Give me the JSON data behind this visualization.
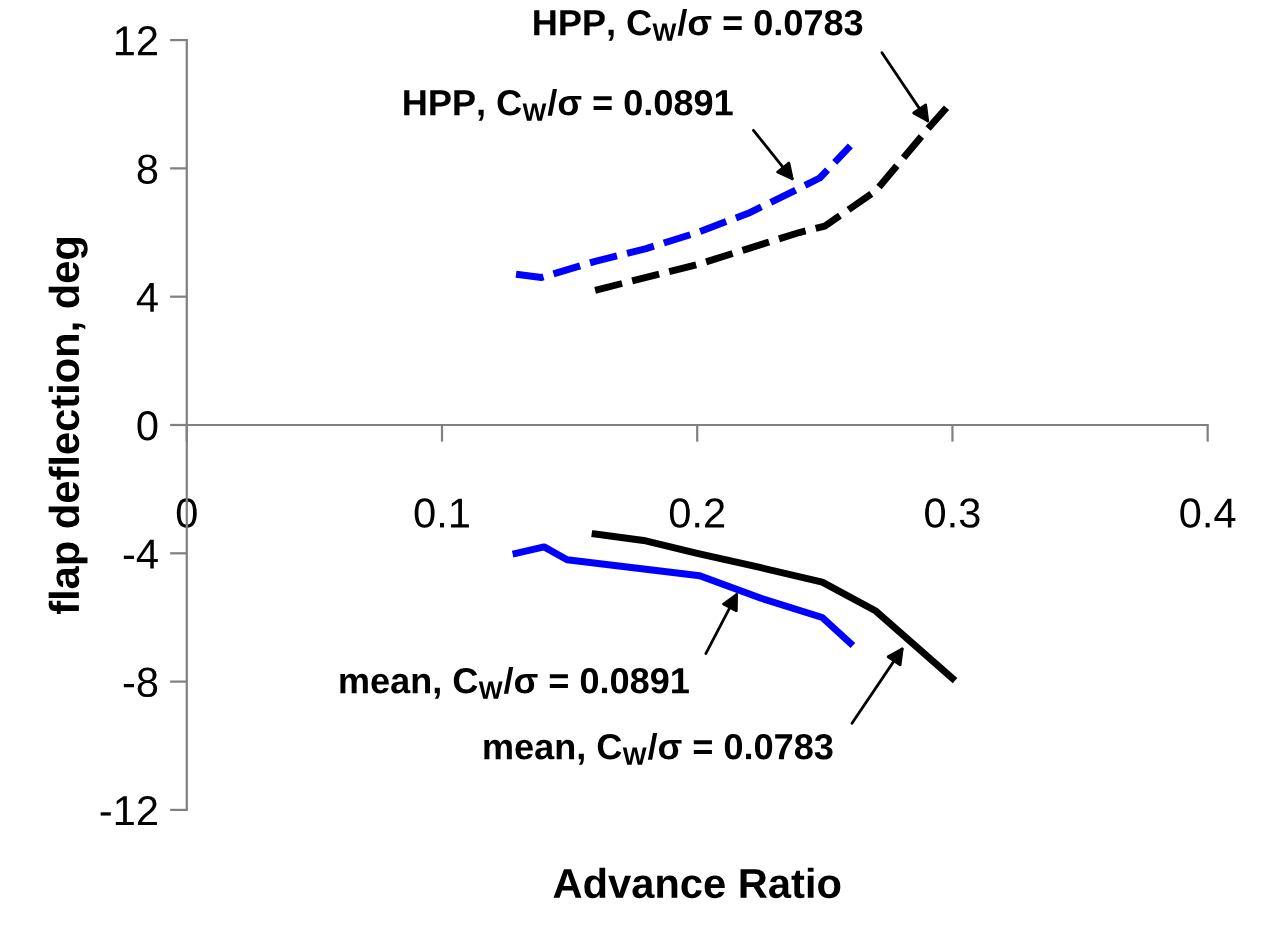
{
  "chart_data": {
    "type": "line",
    "xlabel": "Advance Ratio",
    "ylabel": "flap deflection, deg",
    "xlim": [
      0,
      0.4
    ],
    "xticks": [
      0,
      0.1,
      0.2,
      0.3,
      0.4
    ],
    "ylim": [
      -12,
      12
    ],
    "yticks": [
      -12,
      -8,
      -4,
      0,
      4,
      8,
      12
    ],
    "grid": false,
    "legend": false,
    "marker": "none",
    "series": [
      {
        "color": "#0000ff",
        "line_style": "dashed",
        "x": [
          0.129,
          0.139,
          0.16,
          0.18,
          0.2,
          0.22,
          0.238,
          0.248,
          0.26
        ],
        "values": [
          4.7,
          4.6,
          5.1,
          5.5,
          6.0,
          6.6,
          7.3,
          7.7,
          8.7
        ]
      },
      {
        "color": "#000000",
        "line_style": "dashed",
        "x": [
          0.16,
          0.18,
          0.2,
          0.22,
          0.24,
          0.25,
          0.27,
          0.29,
          0.3
        ],
        "values": [
          4.2,
          4.6,
          5.0,
          5.5,
          6.0,
          6.2,
          7.3,
          9.2,
          10.1
        ]
      },
      {
        "color": "#0000ff",
        "line_style": "solid",
        "x": [
          0.129,
          0.14,
          0.149,
          0.175,
          0.201,
          0.225,
          0.249,
          0.26
        ],
        "values": [
          -4.0,
          -3.8,
          -4.2,
          -4.45,
          -4.7,
          -5.4,
          -6.0,
          -6.8
        ]
      },
      {
        "color": "#000000",
        "line_style": "solid",
        "x": [
          0.16,
          0.179,
          0.2,
          0.225,
          0.249,
          0.27,
          0.3
        ],
        "values": [
          -3.4,
          -3.6,
          -4.0,
          -4.45,
          -4.9,
          -5.8,
          -7.9
        ]
      }
    ],
    "annotations": [
      {
        "text": "HPP, C$_{W}$/σ = 0.0783",
        "x": 0.291,
        "y": 9.4
      },
      {
        "text": "HPP, C$_{W}$/σ = 0.0891",
        "x": 0.238,
        "y": 7.6
      },
      {
        "text": "mean, C$_{W}$/σ = 0.0891",
        "x": 0.216,
        "y": -5.2
      },
      {
        "text": "mean, C$_{W}$/σ = 0.0783",
        "x": 0.281,
        "y": -6.9
      }
    ]
  }
}
